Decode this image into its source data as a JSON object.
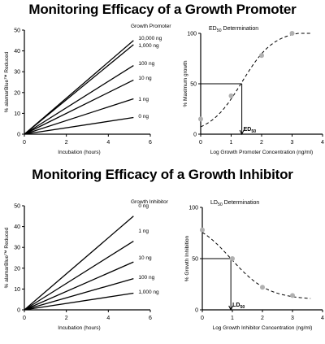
{
  "sections": {
    "promoter_title": "Monitoring Efficacy of a Growth Promoter",
    "inhibitor_title": "Monitoring Efficacy of a Growth Inhibitor"
  },
  "chart_data": [
    {
      "id": "promoter-kinetics",
      "type": "line",
      "title": "",
      "legend_title": "Growth Promoter",
      "xlabel": "Incubation (hours)",
      "ylabel": "% alamarBlue™ Reduced",
      "xlim": [
        0,
        6
      ],
      "ylim": [
        0,
        50
      ],
      "xticks": [
        0,
        2,
        4,
        6
      ],
      "yticks": [
        0,
        10,
        20,
        30,
        40,
        50
      ],
      "series": [
        {
          "name": "10,000 ng",
          "x": [
            0,
            5.2
          ],
          "y": [
            0,
            45
          ]
        },
        {
          "name": "1,000 ng",
          "x": [
            0,
            5.2
          ],
          "y": [
            0,
            43
          ]
        },
        {
          "name": "100 ng",
          "x": [
            0,
            5.2
          ],
          "y": [
            0,
            33
          ]
        },
        {
          "name": "10 ng",
          "x": [
            0,
            5.2
          ],
          "y": [
            0,
            26
          ]
        },
        {
          "name": "1 ng",
          "x": [
            0,
            5.2
          ],
          "y": [
            0,
            17
          ]
        },
        {
          "name": "0 ng",
          "x": [
            0,
            5.2
          ],
          "y": [
            0,
            8
          ]
        }
      ]
    },
    {
      "id": "promoter-ed50",
      "type": "scatter",
      "title": "ED50 Determination",
      "title_main": "ED",
      "title_sub": "50",
      "title_rest": "Determination",
      "xlabel": "Log Growth Promoter Concentration  (ng/ml)",
      "ylabel": "% Maximum growth",
      "xlim": [
        0,
        4
      ],
      "ylim": [
        0,
        100
      ],
      "xticks": [
        0,
        1,
        2,
        3,
        4
      ],
      "yticks": [
        0,
        50,
        100
      ],
      "points": [
        {
          "x": 0,
          "y": 15
        },
        {
          "x": 1,
          "y": 38
        },
        {
          "x": 2,
          "y": 78
        },
        {
          "x": 3,
          "y": 100
        }
      ],
      "curve": {
        "x0": 1.35,
        "k": 1.9,
        "top": 103
      },
      "marker": {
        "label_main": "ED",
        "label_sub": "50",
        "x": 1.35,
        "y": 50
      }
    },
    {
      "id": "inhibitor-kinetics",
      "type": "line",
      "title": "",
      "legend_title": "Growth Inhibitor",
      "xlabel": "Incubation (hours)",
      "ylabel": "% alamarBlue™ Reduced",
      "xlim": [
        0,
        6
      ],
      "ylim": [
        0,
        50
      ],
      "xticks": [
        0,
        2,
        4,
        6
      ],
      "yticks": [
        0,
        10,
        20,
        30,
        40,
        50
      ],
      "series": [
        {
          "name": "0 ng",
          "x": [
            0,
            5.2
          ],
          "y": [
            0,
            45
          ]
        },
        {
          "name": "1 ng",
          "x": [
            0,
            5.2
          ],
          "y": [
            0,
            33
          ]
        },
        {
          "name": "10 ng",
          "x": [
            0,
            5.2
          ],
          "y": [
            0,
            23
          ]
        },
        {
          "name": "100 ng",
          "x": [
            0,
            5.2
          ],
          "y": [
            0,
            15
          ]
        },
        {
          "name": "1,000 ng",
          "x": [
            0,
            5.2
          ],
          "y": [
            0,
            8
          ]
        }
      ]
    },
    {
      "id": "inhibitor-ld50",
      "type": "scatter",
      "title": "LD50 Determination",
      "title_main": "LD",
      "title_sub": "50",
      "title_rest": "Determination",
      "xlabel": "Log Growth Inhibitor Concentration (ng/ml)",
      "ylabel": "% Growth Inhibition",
      "xlim": [
        0,
        4
      ],
      "ylim": [
        0,
        100
      ],
      "xticks": [
        0,
        1,
        2,
        3,
        4
      ],
      "yticks": [
        0,
        50,
        100
      ],
      "points": [
        {
          "x": 0,
          "y": 78
        },
        {
          "x": 1,
          "y": 50
        },
        {
          "x": 2,
          "y": 22
        },
        {
          "x": 3,
          "y": 14
        }
      ],
      "curve": {
        "x0": 0.95,
        "k": -1.6,
        "top": 90,
        "bottom": 10
      },
      "marker": {
        "label_main": "LD",
        "label_sub": "50",
        "x": 0.95,
        "y": 50
      }
    }
  ],
  "colors": {
    "line": "#000000",
    "point": "#b0b0b0",
    "background": "#ffffff"
  }
}
